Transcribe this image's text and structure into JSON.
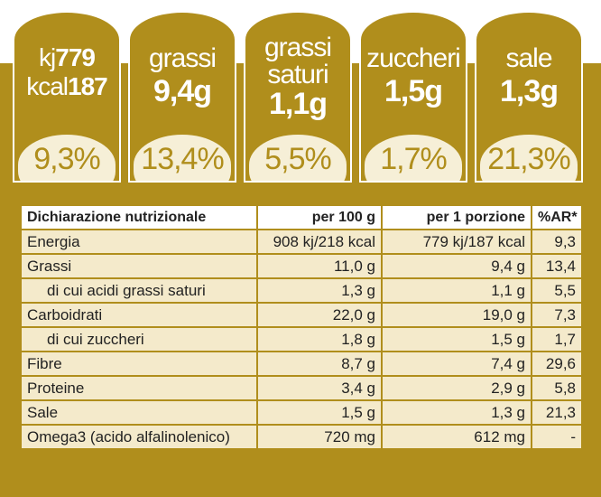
{
  "tabs": [
    {
      "lines": [
        {
          "label": "kj",
          "value": "779"
        },
        {
          "label": "kcal",
          "value": "187"
        }
      ],
      "pct": "9,3%"
    },
    {
      "lines": [
        {
          "label": "grassi",
          "value": ""
        },
        {
          "label": "",
          "value": "9,4g"
        }
      ],
      "pct": "13,4%"
    },
    {
      "lines": [
        {
          "label": "grassi",
          "value": ""
        },
        {
          "label": "saturi",
          "value": ""
        },
        {
          "label": "",
          "value": "1,1g"
        }
      ],
      "pct": "5,5%"
    },
    {
      "lines": [
        {
          "label": "zuccheri",
          "value": ""
        },
        {
          "label": "",
          "value": "1,5g"
        }
      ],
      "pct": "1,7%"
    },
    {
      "lines": [
        {
          "label": "sale",
          "value": ""
        },
        {
          "label": "",
          "value": "1,3g"
        }
      ],
      "pct": "21,3%"
    }
  ],
  "table": {
    "headers": [
      "Dichiarazione nutrizionale",
      "per 100 g",
      "per 1 porzione",
      "%AR*"
    ],
    "rows": [
      {
        "name": "Energia",
        "per100": "908 kj/218 kcal",
        "portion": "779 kj/187 kcal",
        "ar": "9,3"
      },
      {
        "name": "Grassi",
        "per100": "11,0 g",
        "portion": "9,4 g",
        "ar": "13,4"
      },
      {
        "name": "di cui acidi grassi saturi",
        "per100": "1,3 g",
        "portion": "1,1 g",
        "ar": "5,5"
      },
      {
        "name": "Carboidrati",
        "per100": "22,0 g",
        "portion": "19,0 g",
        "ar": "7,3"
      },
      {
        "name": "di cui zuccheri",
        "per100": "1,8 g",
        "portion": "1,5 g",
        "ar": "1,7"
      },
      {
        "name": "Fibre",
        "per100": "8,7 g",
        "portion": "7,4 g",
        "ar": "29,6"
      },
      {
        "name": "Proteine",
        "per100": "3,4 g",
        "portion": "2,9 g",
        "ar": "5,8"
      },
      {
        "name": "Sale",
        "per100": "1,5 g",
        "portion": "1,3 g",
        "ar": "21,3"
      },
      {
        "name": "Omega3 (acido alfalinolenico)",
        "per100": "720 mg",
        "portion": "612 mg",
        "ar": "-"
      }
    ]
  },
  "colors": {
    "gold": "#b08e1c",
    "cream": "#f4eacb",
    "oval": "#f6efd7"
  }
}
